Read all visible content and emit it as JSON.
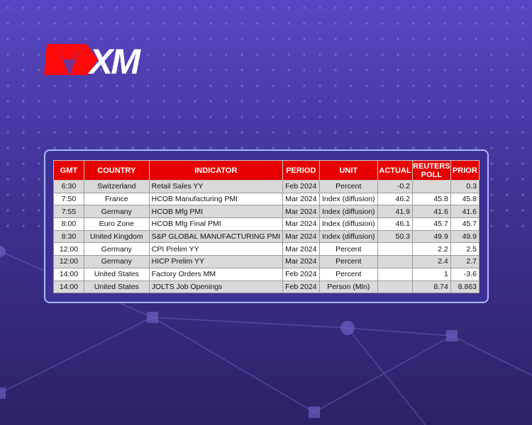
{
  "brand": {
    "name": "XM",
    "accent": "#e60000"
  },
  "table": {
    "headers": [
      "GMT",
      "COUNTRY",
      "INDICATOR",
      "PERIOD",
      "UNIT",
      "ACTUAL",
      "REUTERS POLL",
      "PRIOR"
    ],
    "rows": [
      [
        "6:30",
        "Switzerland",
        "Retail Sales YY",
        "Feb 2024",
        "Percent",
        "-0.2",
        "",
        "0.3"
      ],
      [
        "7:50",
        "France",
        "HCOB Manufacturing PMI",
        "Mar 2024",
        "Index (diffusion)",
        "46.2",
        "45.8",
        "45.8"
      ],
      [
        "7:55",
        "Germany",
        "HCOB Mfg PMI",
        "Mar 2024",
        "Index (diffusion)",
        "41.9",
        "41.6",
        "41.6"
      ],
      [
        "8:00",
        "Euro Zone",
        "HCOB Mfg Final PMI",
        "Mar 2024",
        "Index (diffusion)",
        "46.1",
        "45.7",
        "45.7"
      ],
      [
        "8:30",
        "United Kingdom",
        "S&P GLOBAL MANUFACTURING PMI",
        "Mar 2024",
        "Index (diffusion)",
        "50.3",
        "49.9",
        "49.9"
      ],
      [
        "12:00",
        "Germany",
        "CPI Prelim YY",
        "Mar 2024",
        "Percent",
        "",
        "2.2",
        "2.5"
      ],
      [
        "12:00",
        "Germany",
        "HICP Prelim YY",
        "Mar 2024",
        "Percent",
        "",
        "2.4",
        "2.7"
      ],
      [
        "14:00",
        "United States",
        "Factory Orders MM",
        "Feb 2024",
        "Percent",
        "",
        "1",
        "-3.6"
      ],
      [
        "14:00",
        "United States",
        "JOLTS Job Openings",
        "Feb 2024",
        "Person (Mln)",
        "",
        "8.74",
        "8.863"
      ]
    ]
  }
}
